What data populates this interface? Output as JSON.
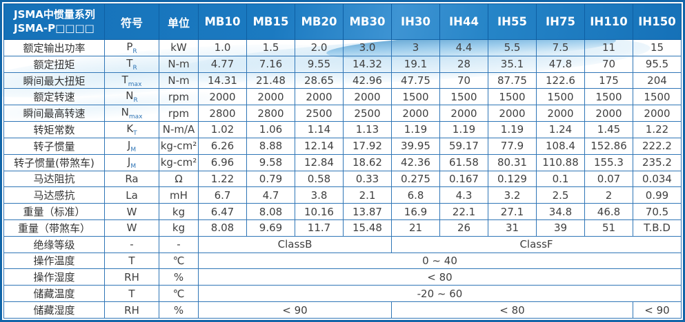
{
  "colors": {
    "header_bg": "#1778BE",
    "frame_border": "#1265A8",
    "cell_border": "#2E75B6",
    "body_text": "#3F3F3F",
    "header_text": "#FFFFFF",
    "swoosh_blue": "#78B9E4"
  },
  "table": {
    "series_title_line1": "JSMA中惯量系列",
    "series_title_line2": "JSMA-P□□□□",
    "symbol_header": "符号",
    "unit_header": "单位",
    "models": [
      "MB10",
      "MB15",
      "MB20",
      "MB30",
      "IH30",
      "IH44",
      "IH55",
      "IH75",
      "IH110",
      "IH150"
    ],
    "rows": [
      {
        "label": "额定输出功率",
        "sym": "P",
        "sub": "R",
        "unit": "kW",
        "values": [
          "1.0",
          "1.5",
          "2.0",
          "3.0",
          "3",
          "4.4",
          "5.5",
          "7.5",
          "11",
          "15"
        ]
      },
      {
        "label": "额定扭矩",
        "sym": "T",
        "sub": "R",
        "unit": "N-m",
        "values": [
          "4.77",
          "7.16",
          "9.55",
          "14.32",
          "19.1",
          "28",
          "35.1",
          "47.8",
          "70",
          "95.5"
        ]
      },
      {
        "label": "瞬间最大扭矩",
        "sym": "T",
        "sub": "max",
        "unit": "N-m",
        "values": [
          "14.31",
          "21.48",
          "28.65",
          "42.96",
          "47.75",
          "70",
          "87.75",
          "122.6",
          "175",
          "204"
        ]
      },
      {
        "label": "额定转速",
        "sym": "N",
        "sub": "R",
        "unit": "rpm",
        "values": [
          "2000",
          "2000",
          "2000",
          "2000",
          "1500",
          "1500",
          "1500",
          "1500",
          "1500",
          "1500"
        ]
      },
      {
        "label": "瞬间最高转速",
        "sym": "N",
        "sub": "max",
        "unit": "rpm",
        "values": [
          "2800",
          "2800",
          "2500",
          "2500",
          "2000",
          "2000",
          "2000",
          "2000",
          "2000",
          "2000"
        ]
      },
      {
        "label": "转矩常数",
        "sym": "K",
        "sub": "T",
        "unit": "N-m/A",
        "values": [
          "1.02",
          "1.06",
          "1.14",
          "1.13",
          "1.19",
          "1.19",
          "1.19",
          "1.24",
          "1.45",
          "1.22"
        ]
      },
      {
        "label": "转子惯量",
        "sym": "J",
        "sub": "M",
        "unit": "kg-cm²",
        "values": [
          "6.26",
          "8.88",
          "12.14",
          "17.92",
          "39.95",
          "59.17",
          "77.9",
          "108.4",
          "152.86",
          "222.2"
        ]
      },
      {
        "label": "转子惯量(带煞车)",
        "sym": "J",
        "sub": "M",
        "unit": "kg-cm²",
        "values": [
          "6.96",
          "9.58",
          "12.84",
          "18.62",
          "42.36",
          "61.58",
          "80.31",
          "110.88",
          "155.3",
          "235.2"
        ]
      },
      {
        "label": "马达阻抗",
        "sym": "Ra",
        "sub": "",
        "unit": "Ω",
        "values": [
          "1.22",
          "0.79",
          "0.58",
          "0.33",
          "0.275",
          "0.167",
          "0.129",
          "0.1",
          "0.07",
          "0.034"
        ]
      },
      {
        "label": "马达感抗",
        "sym": "La",
        "sub": "",
        "unit": "mH",
        "values": [
          "6.7",
          "4.7",
          "3.8",
          "2.1",
          "6.8",
          "4.3",
          "3.2",
          "2.5",
          "2",
          "0.99"
        ]
      },
      {
        "label": "重量（标准）",
        "sym": "W",
        "sub": "",
        "unit": "kg",
        "values": [
          "6.47",
          "8.08",
          "10.16",
          "13.87",
          "16.9",
          "22.1",
          "27.1",
          "34.8",
          "46.8",
          "70.5"
        ]
      },
      {
        "label": "重量（带煞车）",
        "sym": "W",
        "sub": "",
        "unit": "kg",
        "values": [
          "8.08",
          "9.69",
          "11.7",
          "15.48",
          "21",
          "26",
          "31",
          "39",
          "51",
          "T.B.D"
        ]
      },
      {
        "label": "绝缘等级",
        "sym": "-",
        "sub": "",
        "unit": "-",
        "merged": [
          {
            "span": 4,
            "text": "ClassB"
          },
          {
            "span": 6,
            "text": "ClassF"
          }
        ]
      },
      {
        "label": "操作温度",
        "sym": "T",
        "sub": "",
        "unit": "℃",
        "merged": [
          {
            "span": 10,
            "text": "0 ~ 40"
          }
        ]
      },
      {
        "label": "操作湿度",
        "sym": "RH",
        "sub": "",
        "unit": "%",
        "merged": [
          {
            "span": 10,
            "text": "< 80"
          }
        ]
      },
      {
        "label": "储藏温度",
        "sym": "T",
        "sub": "",
        "unit": "℃",
        "merged": [
          {
            "span": 10,
            "text": "-20 ~ 60"
          }
        ]
      },
      {
        "label": "储藏湿度",
        "sym": "RH",
        "sub": "",
        "unit": "%",
        "merged": [
          {
            "span": 4,
            "text": "< 90"
          },
          {
            "span": 5,
            "text": "< 80"
          },
          {
            "span": 1,
            "text": "< 90"
          }
        ]
      }
    ]
  }
}
